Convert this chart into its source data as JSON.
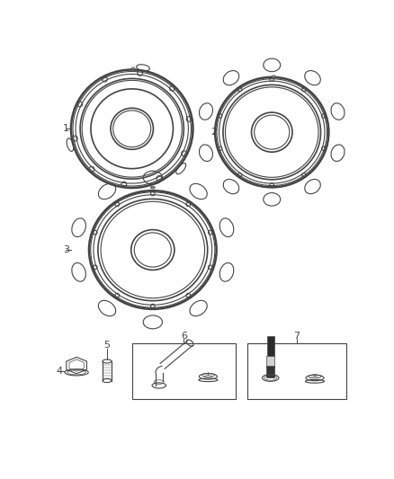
{
  "bg_color": "#ffffff",
  "line_color": "#444444",
  "label_color": "#222222",
  "fig_width": 4.38,
  "fig_height": 5.33
}
